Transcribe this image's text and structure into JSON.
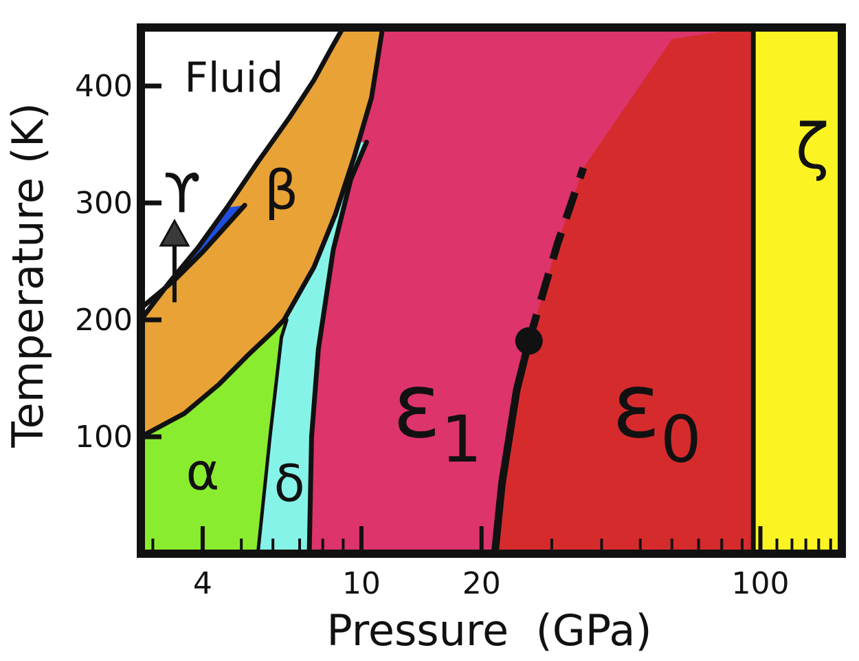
{
  "chart_data": {
    "type": "phase-diagram",
    "xlabel": "Pressure  (GPa)",
    "ylabel": "Temperature (K)",
    "x_scale": "log",
    "xlim": [
      2.8,
      160
    ],
    "ylim": [
      0,
      450
    ],
    "x_ticks": [
      {
        "value": 4,
        "label": "4"
      },
      {
        "value": 10,
        "label": "10"
      },
      {
        "value": 20,
        "label": "20"
      },
      {
        "value": 100,
        "label": "100"
      }
    ],
    "y_ticks": [
      {
        "value": 100,
        "label": "100"
      },
      {
        "value": 200,
        "label": "200"
      },
      {
        "value": 300,
        "label": "300"
      },
      {
        "value": 400,
        "label": "400"
      }
    ],
    "phases": [
      {
        "id": "fluid",
        "label": "Fluid",
        "color": "#ffffff"
      },
      {
        "id": "gamma",
        "label": "ϒ",
        "color": "#1f4fe0"
      },
      {
        "id": "beta",
        "label": "β",
        "color": "#e8a236"
      },
      {
        "id": "alpha",
        "label": "α",
        "color": "#8aec2e"
      },
      {
        "id": "delta",
        "label": "δ",
        "color": "#86f3e8"
      },
      {
        "id": "epsilon1",
        "label": "ε",
        "subscript": "1",
        "color": "#dc346b"
      },
      {
        "id": "epsilon0",
        "label": "ε",
        "subscript": "0",
        "color": "#d62b2d"
      },
      {
        "id": "zeta",
        "label": "ζ",
        "color": "#fbf422"
      }
    ],
    "boundaries": {
      "melting": [
        [
          2.8,
          200
        ],
        [
          3.3,
          232
        ],
        [
          3.9,
          262
        ],
        [
          4.6,
          296
        ],
        [
          5.5,
          335
        ],
        [
          6.6,
          373
        ],
        [
          7.6,
          405
        ],
        [
          8.4,
          432
        ],
        [
          9.0,
          450
        ]
      ],
      "gamma_beta": [
        [
          2.8,
          210
        ],
        [
          3.4,
          234
        ],
        [
          4.0,
          258
        ],
        [
          4.6,
          281
        ],
        [
          5.1,
          298
        ]
      ],
      "beta_lower": [
        [
          2.8,
          100
        ],
        [
          3.6,
          120
        ],
        [
          4.4,
          145
        ],
        [
          5.2,
          170
        ],
        [
          6.0,
          190
        ],
        [
          6.4,
          200
        ],
        [
          7.6,
          245
        ],
        [
          8.6,
          290
        ],
        [
          9.6,
          340
        ],
        [
          10.6,
          390
        ],
        [
          11.3,
          450
        ]
      ],
      "alpha_delta": [
        [
          5.5,
          0
        ],
        [
          5.9,
          100
        ],
        [
          6.3,
          185
        ],
        [
          6.5,
          200
        ]
      ],
      "delta_epsilon1": [
        [
          7.4,
          0
        ],
        [
          7.5,
          100
        ],
        [
          7.8,
          175
        ],
        [
          8.5,
          260
        ],
        [
          9.4,
          320
        ],
        [
          10.3,
          352
        ]
      ],
      "epsilon1_epsilon0_solid": [
        [
          21.6,
          0
        ],
        [
          22.5,
          60
        ],
        [
          24.5,
          140
        ],
        [
          26.3,
          182
        ]
      ],
      "epsilon1_epsilon0_dashed": [
        [
          26.3,
          182
        ],
        [
          31,
          265
        ],
        [
          36,
          330
        ]
      ],
      "epsilon0_zeta": [
        [
          96,
          0
        ],
        [
          96,
          450
        ]
      ]
    },
    "triple_point": {
      "x": 26.3,
      "y": 182
    },
    "arrow": {
      "x": 3.4,
      "y_from": 215,
      "y_to": 280
    }
  }
}
